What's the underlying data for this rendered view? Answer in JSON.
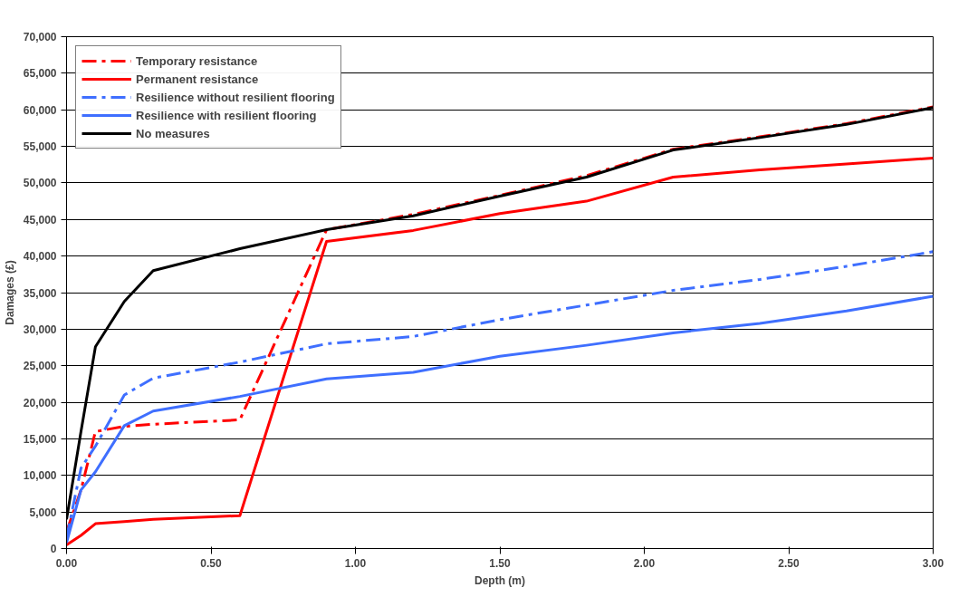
{
  "chart_data": {
    "type": "line",
    "xlabel": "Depth (m)",
    "ylabel": "Damages (£)",
    "x": [
      0,
      0.05,
      0.1,
      0.2,
      0.3,
      0.6,
      0.9,
      1.2,
      1.5,
      1.8,
      2.1,
      2.4,
      2.7,
      3.0
    ],
    "series": [
      {
        "name": "Temporary resistance",
        "color": "#ff0000",
        "line_style": "dashed",
        "values": [
          2300,
          8000,
          16000,
          16700,
          17000,
          17600,
          43600,
          45700,
          48300,
          51000,
          54600,
          56300,
          58100,
          60400
        ]
      },
      {
        "name": "Permanent resistance",
        "color": "#ff0000",
        "line_style": "solid",
        "values": [
          500,
          1800,
          3400,
          3700,
          4000,
          4500,
          42000,
          43500,
          45800,
          47500,
          50800,
          51800,
          52600,
          53400
        ]
      },
      {
        "name": "Resilience without resilient flooring",
        "color": "#3f6fff",
        "line_style": "dashed",
        "values": [
          1500,
          11000,
          14000,
          21000,
          23300,
          25500,
          28000,
          29000,
          31300,
          33300,
          35300,
          36800,
          38600,
          40600
        ]
      },
      {
        "name": "Resilience with resilient flooring",
        "color": "#3f6fff",
        "line_style": "solid",
        "values": [
          800,
          8000,
          10500,
          16800,
          18800,
          20800,
          23200,
          24100,
          26300,
          27800,
          29500,
          30800,
          32500,
          34500
        ]
      },
      {
        "name": "No measures",
        "color": "#000000",
        "line_style": "solid",
        "values": [
          4000,
          16000,
          27600,
          33800,
          38000,
          41000,
          43600,
          45500,
          48200,
          50800,
          54500,
          56200,
          58000,
          60300
        ]
      }
    ],
    "xlim": [
      0,
      3.0
    ],
    "xticks": [
      {
        "value": 0,
        "label": "0.00"
      },
      {
        "value": 0.5,
        "label": "0.50"
      },
      {
        "value": 1.0,
        "label": "1.00"
      },
      {
        "value": 1.5,
        "label": "1.50"
      },
      {
        "value": 2.0,
        "label": "2.00"
      },
      {
        "value": 2.5,
        "label": "2.50"
      },
      {
        "value": 3.0,
        "label": "3.00"
      }
    ],
    "ylim": [
      0,
      70000
    ],
    "yticks": [
      {
        "value": 0,
        "label": "0"
      },
      {
        "value": 5000,
        "label": "5,000"
      },
      {
        "value": 10000,
        "label": "10,000"
      },
      {
        "value": 15000,
        "label": "15,000"
      },
      {
        "value": 20000,
        "label": "20,000"
      },
      {
        "value": 25000,
        "label": "25,000"
      },
      {
        "value": 30000,
        "label": "30,000"
      },
      {
        "value": 35000,
        "label": "35,000"
      },
      {
        "value": 40000,
        "label": "40,000"
      },
      {
        "value": 45000,
        "label": "45,000"
      },
      {
        "value": 50000,
        "label": "50,000"
      },
      {
        "value": 55000,
        "label": "55,000"
      },
      {
        "value": 60000,
        "label": "60,000"
      },
      {
        "value": 65000,
        "label": "65,000"
      },
      {
        "value": 70000,
        "label": "70,000"
      }
    ],
    "grid": "y",
    "legend": "top left",
    "marker": "none"
  }
}
